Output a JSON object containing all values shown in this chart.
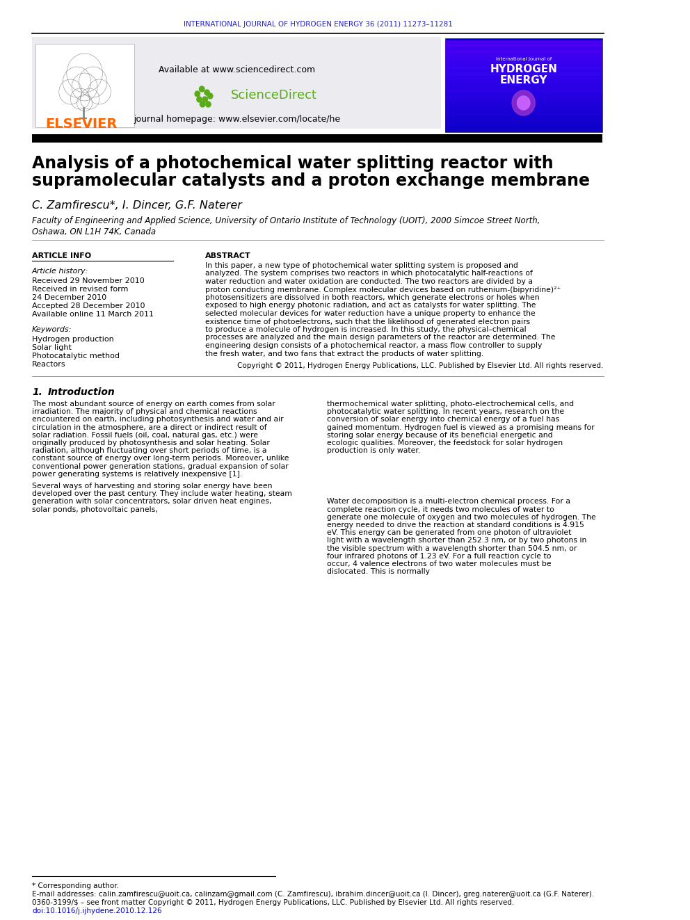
{
  "header_journal": "INTERNATIONAL JOURNAL OF HYDROGEN ENERGY 36 (2011) 11273–11281",
  "header_color": "#2222cc",
  "elsevier_color": "#FF6600",
  "sciencedirect_green": "#5aab19",
  "available_text": "Available at www.sciencedirect.com",
  "sciencedirect_text": "ScienceDirect",
  "journal_homepage": "journal homepage: www.elsevier.com/locate/he",
  "title_line1": "Analysis of a photochemical water splitting reactor with",
  "title_line2": "supramolecular catalysts and a proton exchange membrane",
  "authors": "C. Zamfirescu*, I. Dincer, G.F. Naterer",
  "affiliation1": "Faculty of Engineering and Applied Science, University of Ontario Institute of Technology (UOIT), 2000 Simcoe Street North,",
  "affiliation2": "Oshawa, ON L1H 74K, Canada",
  "article_info_header": "ARTICLE INFO",
  "abstract_header": "ABSTRACT",
  "article_history_label": "Article history:",
  "received1": "Received 29 November 2010",
  "received2": "Received in revised form",
  "date2": "24 December 2010",
  "accepted": "Accepted 28 December 2010",
  "available": "Available online 11 March 2011",
  "keywords_label": "Keywords:",
  "kw1": "Hydrogen production",
  "kw2": "Solar light",
  "kw3": "Photocatalytic method",
  "kw4": "Reactors",
  "abstract_text": "In this paper, a new type of photochemical water splitting system is proposed and analyzed. The system comprises two reactors in which photocatalytic half-reactions of water reduction and water oxidation are conducted. The two reactors are divided by a proton conducting membrane. Complex molecular devices based on ruthenium-(bipyridine)²⁺ photosensitizers are dissolved in both reactors, which generate electrons or holes when exposed to high energy photonic radiation, and act as catalysts for water splitting. The selected molecular devices for water reduction have a unique property to enhance the existence time of photoelectrons, such that the likelihood of generated electron pairs to produce a molecule of hydrogen is increased. In this study, the physical–chemical processes are analyzed and the main design parameters of the reactor are determined. The engineering design consists of a photochemical reactor, a mass flow controller to supply the fresh water, and two fans that extract the products of water splitting.",
  "copyright_text": "Copyright © 2011, Hydrogen Energy Publications, LLC. Published by Elsevier Ltd. All rights reserved.",
  "section1_num": "1.",
  "section1_title": "Introduction",
  "intro_col1_p1": "The most abundant source of energy on earth comes from solar irradiation. The majority of physical and chemical reactions encountered on earth, including photosynthesis and water and air circulation in the atmosphere, are a direct or indirect result of solar radiation. Fossil fuels (oil, coal, natural gas, etc.) were originally produced by photosynthesis and solar heating. Solar radiation, although fluctuating over short periods of time, is a constant source of energy over long-term periods. Moreover, unlike conventional power generation stations, gradual expansion of solar power generating systems is relatively inexpensive [1].",
  "intro_col1_p2": "Several ways of harvesting and storing solar energy have been developed over the past century. They include water heating, steam generation with solar concentrators, solar driven heat engines, solar ponds, photovoltaic panels,",
  "intro_col2_p1": "thermochemical water splitting, photo-electrochemical cells, and photocatalytic water splitting. In recent years, research on the conversion of solar energy into chemical energy of a fuel has gained momentum. Hydrogen fuel is viewed as a promising means for storing solar energy because of its beneficial energetic and ecologic qualities. Moreover, the feedstock for solar hydrogen production is only water.",
  "intro_col2_p2": "Water decomposition is a multi-electron chemical process. For a complete reaction cycle, it needs two molecules of water to generate one molecule of oxygen and two molecules of hydrogen. The energy needed to drive the reaction at standard conditions is 4.915 eV. This energy can be generated from one photon of ultraviolet light with a wavelength shorter than 252.3 nm, or by two photons in the visible spectrum with a wavelength shorter than 504.5 nm, or four infrared photons of 1.23 eV. For a full reaction cycle to occur, 4 valence electrons of two water molecules must be dislocated. This is normally",
  "footnote_star": "* Corresponding author.",
  "footnote_email": "E-mail addresses: calin.zamfirescu@uoit.ca, calinzam@gmail.com (C. Zamfirescu), ibrahim.dincer@uoit.ca (I. Dincer), greg.naterer@uoit.ca (G.F. Naterer).",
  "footnote_issn": "0360-3199/$ – see front matter Copyright © 2011, Hydrogen Energy Publications, LLC. Published by Elsevier Ltd. All rights reserved.",
  "footnote_doi": "doi:10.1016/j.ijhydene.2010.12.126",
  "link_color": "#0000cc",
  "bg_color": "#ffffff",
  "header_box_color": "#f0f0f5"
}
